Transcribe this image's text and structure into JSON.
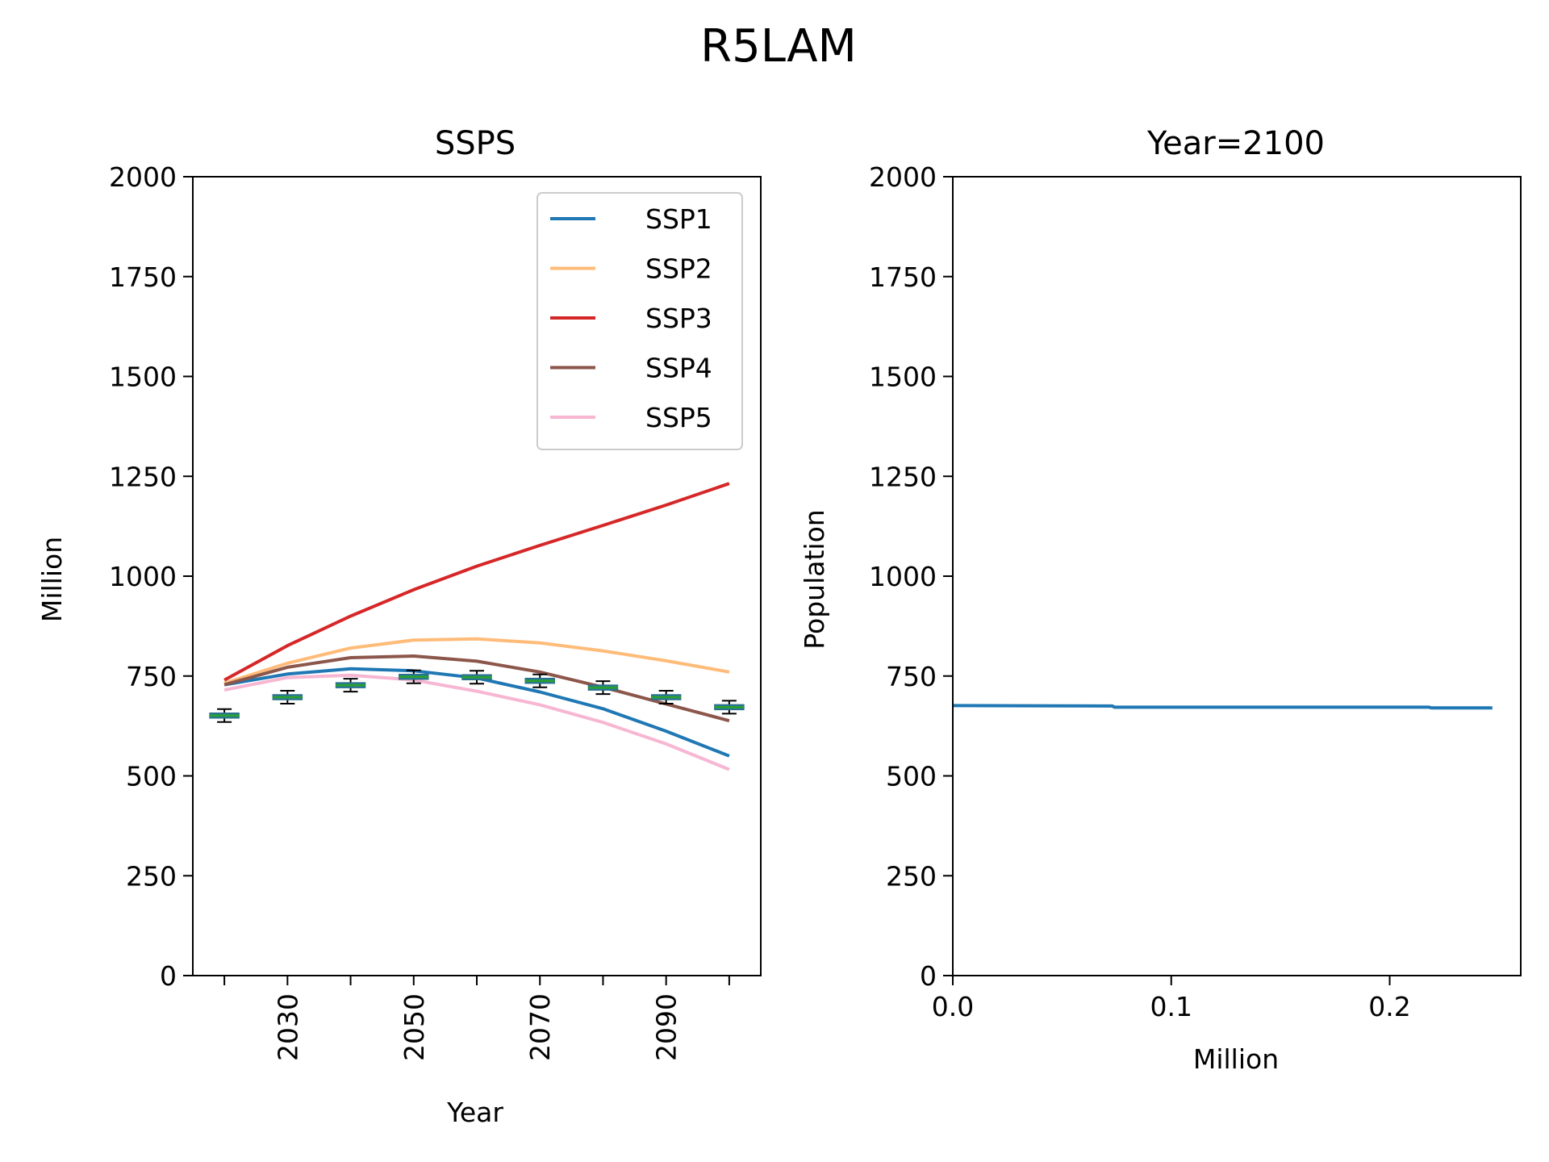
{
  "figure": {
    "title": "R5LAM"
  },
  "chart_data": [
    {
      "type": "line",
      "title": "SSPS",
      "xlabel": "Year",
      "ylabel": "Million",
      "xlim": [
        2015,
        2105
      ],
      "ylim": [
        0,
        2000
      ],
      "x_ticks": [
        2020,
        2030,
        2040,
        2050,
        2060,
        2070,
        2080,
        2090,
        2100
      ],
      "x_tick_labels": [
        "",
        "2030",
        "",
        "2050",
        "",
        "2070",
        "",
        "2090",
        ""
      ],
      "y_ticks": [
        0,
        250,
        500,
        750,
        1000,
        1250,
        1500,
        1750,
        2000
      ],
      "legend": "top-right",
      "grid": false,
      "x": [
        2020,
        2030,
        2040,
        2050,
        2060,
        2070,
        2080,
        2090,
        2100
      ],
      "series": [
        {
          "name": "SSP1",
          "color": "#1f77b4",
          "values": [
            728,
            755,
            768,
            763,
            745,
            710,
            668,
            612,
            550
          ]
        },
        {
          "name": "SSP2",
          "color": "#ffbb78",
          "values": [
            732,
            782,
            820,
            840,
            843,
            833,
            813,
            788,
            760
          ]
        },
        {
          "name": "SSP3",
          "color": "#d62728",
          "values": [
            740,
            826,
            900,
            966,
            1025,
            1077,
            1127,
            1178,
            1232
          ]
        },
        {
          "name": "SSP4",
          "color": "#8c564b",
          "values": [
            728,
            772,
            796,
            800,
            787,
            760,
            722,
            680,
            638
          ]
        },
        {
          "name": "SSP5",
          "color": "#f7b6d2",
          "values": [
            715,
            746,
            752,
            740,
            712,
            678,
            634,
            580,
            516
          ]
        }
      ],
      "boxes": {
        "color": "#2ca02c",
        "values": [
          651,
          697,
          727,
          748,
          747,
          738,
          721,
          697,
          672
        ]
      }
    },
    {
      "type": "line",
      "title": "Year=2100",
      "xlabel": "Million",
      "ylabel": "Population",
      "xlim": [
        0,
        0.26
      ],
      "ylim": [
        0,
        2000
      ],
      "x_ticks": [
        0.0,
        0.1,
        0.2
      ],
      "x_tick_labels": [
        "0.0",
        "0.1",
        "0.2"
      ],
      "y_ticks": [
        0,
        250,
        500,
        750,
        1000,
        1250,
        1500,
        1750,
        2000
      ],
      "color": "#1f77b4",
      "values": [
        {
          "x": 0.0,
          "y": 676
        },
        {
          "x": 0.073,
          "y": 675
        },
        {
          "x": 0.074,
          "y": 672
        },
        {
          "x": 0.218,
          "y": 672
        },
        {
          "x": 0.219,
          "y": 670
        },
        {
          "x": 0.247,
          "y": 670
        }
      ]
    }
  ]
}
